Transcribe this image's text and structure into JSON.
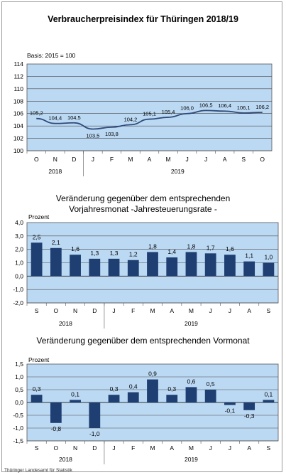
{
  "title": "Verbraucherpreisindex für Thüringen 2018/19",
  "chart_data": [
    {
      "type": "line",
      "note": "Basis: 2015  = 100",
      "categories": [
        "O",
        "N",
        "D",
        "J",
        "F",
        "M",
        "A",
        "M",
        "J",
        "J",
        "A",
        "S",
        "O"
      ],
      "years": [
        "2018",
        "2019"
      ],
      "values": [
        105.2,
        104.4,
        104.5,
        103.5,
        103.8,
        104.2,
        105.1,
        105.4,
        106.0,
        106.5,
        106.4,
        106.1,
        106.2
      ],
      "labels": [
        "105,2",
        "104,4",
        "104,5",
        "103,5",
        "103,8",
        "104,2",
        "105,1",
        "105,4",
        "106,0",
        "106,5",
        "106,4",
        "106,1",
        "106,2"
      ],
      "yticks": [
        "114",
        "112",
        "110",
        "108",
        "106",
        "104",
        "102",
        "100"
      ],
      "ylim": [
        100,
        114
      ],
      "grid": true,
      "colors": {
        "line": "#2e4a7a",
        "area": "#bcd9f4"
      }
    },
    {
      "type": "bar",
      "title_line1": "Veränderung gegenüber dem entsprechenden",
      "title_line2": "Vorjahresmonat  -Jahresteuerungsrate -",
      "ylabel": "Prozent",
      "categories": [
        "S",
        "O",
        "N",
        "D",
        "J",
        "F",
        "M",
        "A",
        "M",
        "J",
        "J",
        "A",
        "S"
      ],
      "years": [
        "2018",
        "2019"
      ],
      "values": [
        2.5,
        2.1,
        1.6,
        1.3,
        1.3,
        1.2,
        1.8,
        1.4,
        1.8,
        1.7,
        1.6,
        1.1,
        1.0
      ],
      "labels": [
        "2,5",
        "2,1",
        "1,6",
        "1,3",
        "1,3",
        "1,2",
        "1,8",
        "1,4",
        "1,8",
        "1,7",
        "1,6",
        "1,1",
        "1,0"
      ],
      "yticks": [
        "4,0",
        "3,0",
        "2,0",
        "1,0",
        "0,0",
        "-1,0",
        "-2,0"
      ],
      "ylim": [
        -2,
        4
      ],
      "grid": true,
      "colors": {
        "bar": "#1f3f73",
        "area": "#bcd9f4"
      }
    },
    {
      "type": "bar",
      "title": "Veränderung gegenüber dem entsprechenden Vormonat",
      "ylabel": "Prozent",
      "categories": [
        "S",
        "O",
        "N",
        "D",
        "J",
        "F",
        "M",
        "A",
        "M",
        "J",
        "J",
        "A",
        "S"
      ],
      "years": [
        "2018",
        "2019"
      ],
      "values": [
        0.3,
        -0.8,
        0.1,
        -1.0,
        0.3,
        0.4,
        0.9,
        0.3,
        0.6,
        0.5,
        -0.1,
        -0.3,
        0.1
      ],
      "labels": [
        "0,3",
        "-0,8",
        "0,1",
        "-1,0",
        "0,3",
        "0,4",
        "0,9",
        "0,3",
        "0,6",
        "0,5",
        "-0,1",
        "-0,3",
        "0,1"
      ],
      "yticks": [
        "1,5",
        "1,0",
        "0,5",
        "0,0",
        "-0,5",
        "-1,0",
        "-1,5"
      ],
      "ylim": [
        -1.5,
        1.5
      ],
      "grid": true,
      "colors": {
        "bar": "#1f3f73",
        "area": "#bcd9f4"
      }
    }
  ],
  "footer": "Thüringer  Landesamt für Statistik"
}
